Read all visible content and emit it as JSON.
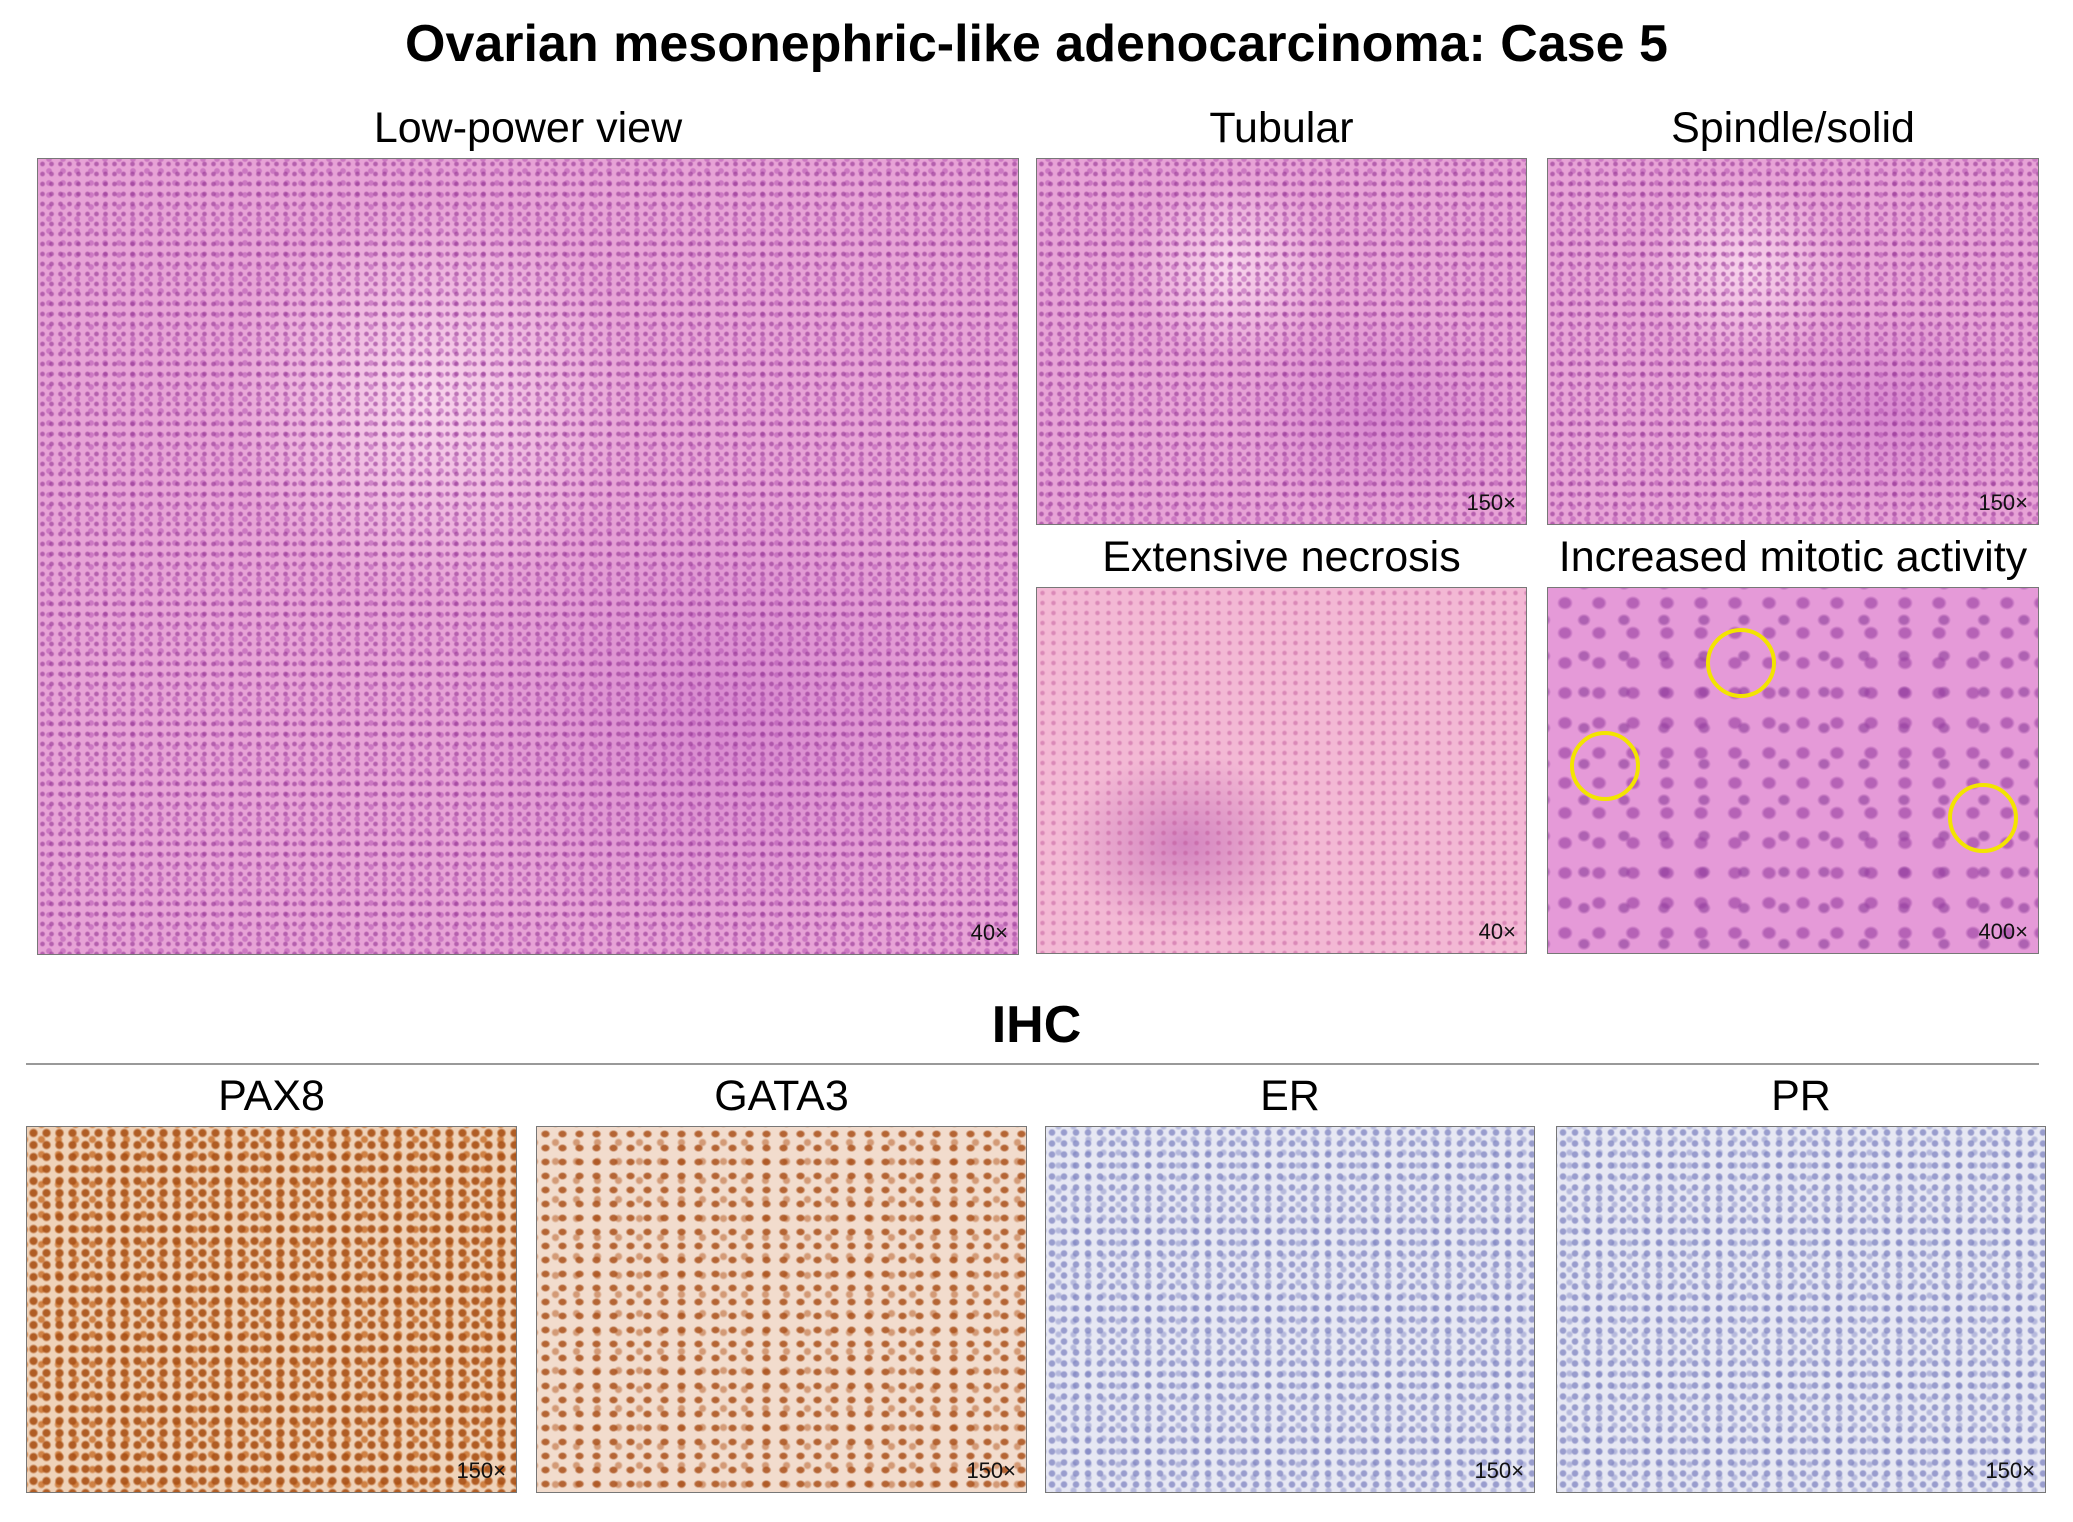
{
  "title": "Ovarian mesonephric-like adenocarcinoma: Case 5",
  "top_panels": [
    {
      "label": "Low-power view",
      "magnification": "40×"
    },
    {
      "label": "Tubular",
      "magnification": "150×"
    },
    {
      "label": "Spindle/solid",
      "magnification": "150×"
    },
    {
      "label": "Extensive necrosis",
      "magnification": "40×"
    },
    {
      "label": "Increased mitotic activity",
      "magnification": "400×"
    }
  ],
  "ihc": {
    "title": "IHC",
    "panels": [
      {
        "label": "PAX8",
        "magnification": "150×"
      },
      {
        "label": "GATA3",
        "magnification": "150×"
      },
      {
        "label": "ER",
        "magnification": "150×"
      },
      {
        "label": "PR",
        "magnification": "150×"
      }
    ]
  }
}
